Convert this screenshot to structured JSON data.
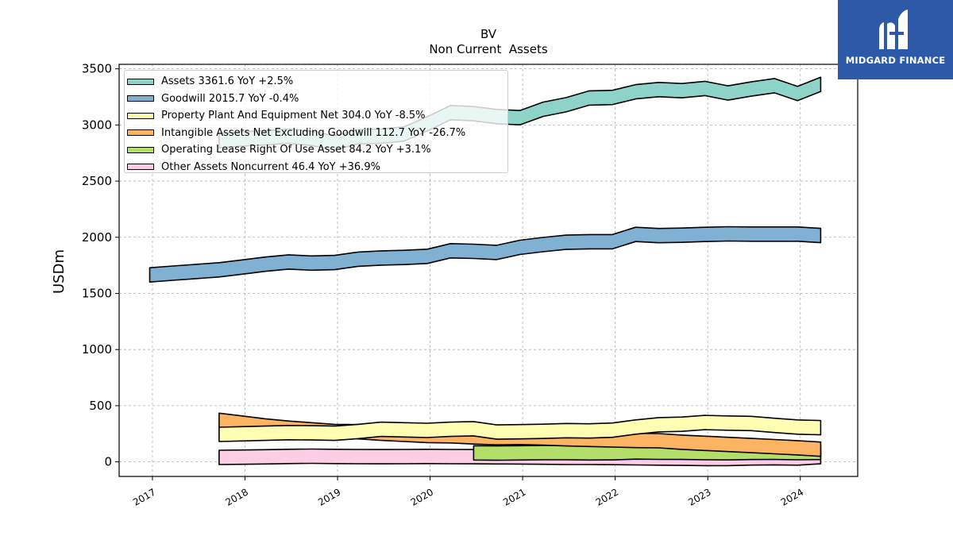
{
  "chart_data": {
    "type": "area",
    "title": "BV",
    "subtitle": "Non Current  Assets",
    "ylabel": "USDm",
    "xlabel": "",
    "ylim": [
      -130,
      3540
    ],
    "xlim": [
      2016.64,
      2024.62
    ],
    "grid": true,
    "legend_position": "top-left",
    "y_ticks": [
      0,
      500,
      1000,
      1500,
      2000,
      2500,
      3000,
      3500
    ],
    "x_ticks": [
      2017,
      2018,
      2019,
      2020,
      2021,
      2022,
      2023,
      2024
    ],
    "series": [
      {
        "name": "Assets  3361.6 YoY +2.5%",
        "color": "#8dd3c7",
        "x": [
          2017.72,
          2017.97,
          2018.22,
          2018.47,
          2018.72,
          2018.97,
          2019.22,
          2019.47,
          2019.72,
          2019.97,
          2020.22,
          2020.47,
          2020.72,
          2020.97,
          2021.22,
          2021.47,
          2021.72,
          2021.97,
          2022.22,
          2022.47,
          2022.72,
          2022.97,
          2023.22,
          2023.47,
          2023.72,
          2023.97,
          2024.22
        ],
        "values": [
          2860,
          2875,
          2885,
          2900,
          2880,
          2840,
          2895,
          2900,
          2920,
          3010,
          3110,
          3100,
          3075,
          3065,
          3140,
          3180,
          3240,
          3245,
          3295,
          3315,
          3305,
          3325,
          3285,
          3320,
          3350,
          3280,
          3361.6
        ]
      },
      {
        "name": "Goodwill  2015.7 YoY -0.4%",
        "color": "#80b1d3",
        "x": [
          2016.97,
          2017.22,
          2017.47,
          2017.72,
          2017.97,
          2018.22,
          2018.47,
          2018.72,
          2018.97,
          2019.22,
          2019.47,
          2019.72,
          2019.97,
          2020.22,
          2020.47,
          2020.72,
          2020.97,
          2021.22,
          2021.47,
          2021.72,
          2021.97,
          2022.22,
          2022.47,
          2022.72,
          2022.97,
          2023.22,
          2023.47,
          2023.72,
          2023.97,
          2024.22
        ],
        "values": [
          1665,
          1680,
          1695,
          1710,
          1735,
          1760,
          1780,
          1770,
          1775,
          1805,
          1815,
          1820,
          1830,
          1880,
          1875,
          1865,
          1910,
          1935,
          1955,
          1960,
          1960,
          2025,
          2015,
          2018,
          2025,
          2030,
          2028,
          2028,
          2028,
          2015.7
        ]
      },
      {
        "name": "Property Plant And Equipment Net  304.0 YoY -8.5%",
        "color": "#ffffb3",
        "x": [
          2017.72,
          2017.97,
          2018.22,
          2018.47,
          2018.72,
          2018.97,
          2019.22,
          2019.47,
          2019.72,
          2019.97,
          2020.22,
          2020.47,
          2020.72,
          2020.97,
          2021.22,
          2021.47,
          2021.72,
          2021.97,
          2022.22,
          2022.47,
          2022.72,
          2022.97,
          2023.22,
          2023.47,
          2023.72,
          2023.97,
          2024.22
        ],
        "values": [
          245,
          250,
          255,
          260,
          258,
          255,
          270,
          290,
          285,
          280,
          290,
          295,
          265,
          268,
          272,
          278,
          275,
          282,
          310,
          330,
          335,
          350,
          345,
          342,
          325,
          310,
          304.0
        ]
      },
      {
        "name": "Intangible Assets Net Excluding Goodwill  112.7 YoY -26.7%",
        "color": "#fdb462",
        "x": [
          2017.72,
          2017.97,
          2018.22,
          2018.47,
          2018.72,
          2018.97,
          2019.22,
          2019.47,
          2019.72,
          2019.97,
          2020.22,
          2020.47,
          2020.72,
          2020.97,
          2021.22,
          2021.47,
          2021.72,
          2021.97,
          2022.22,
          2022.47,
          2022.72,
          2022.97,
          2023.22,
          2023.47,
          2023.72,
          2023.97,
          2024.22
        ],
        "values": [
          370,
          345,
          320,
          300,
          285,
          270,
          268,
          255,
          245,
          235,
          232,
          222,
          215,
          218,
          212,
          205,
          200,
          195,
          190,
          188,
          175,
          165,
          155,
          145,
          135,
          125,
          112.7
        ]
      },
      {
        "name": "Operating Lease Right Of Use Asset  84.2 YoY +3.1%",
        "color": "#b3de69",
        "x": [
          2020.47,
          2020.72,
          2020.97,
          2021.22,
          2021.47,
          2021.72,
          2021.97,
          2022.22,
          2022.47,
          2022.72,
          2022.97,
          2023.22,
          2023.47,
          2023.72,
          2023.97,
          2024.22
        ],
        "values": [
          80,
          78,
          80,
          82,
          82,
          80,
          81,
          88,
          86,
          85,
          82,
          81,
          84,
          85,
          82,
          84.2
        ]
      },
      {
        "name": "Other Assets Noncurrent  46.4 YoY +36.9%",
        "color": "#fccde5",
        "x": [
          2017.72,
          2017.97,
          2018.22,
          2018.47,
          2018.72,
          2018.97,
          2019.22,
          2019.47,
          2019.72,
          2019.97,
          2020.22,
          2020.47,
          2020.72,
          2020.97,
          2021.22,
          2021.47,
          2021.72,
          2021.97,
          2022.22,
          2022.47,
          2022.72,
          2022.97,
          2023.22,
          2023.47,
          2023.72,
          2023.97,
          2024.22
        ],
        "values": [
          40,
          42,
          45,
          48,
          50,
          48,
          47,
          46,
          47,
          48,
          47,
          46,
          45,
          44,
          42,
          40,
          40,
          38,
          36,
          34,
          32,
          30,
          30,
          35,
          37,
          34,
          46.4
        ]
      }
    ]
  },
  "logo": {
    "text": "MIDGARD FINANCE",
    "color": "#2d5aa8"
  }
}
